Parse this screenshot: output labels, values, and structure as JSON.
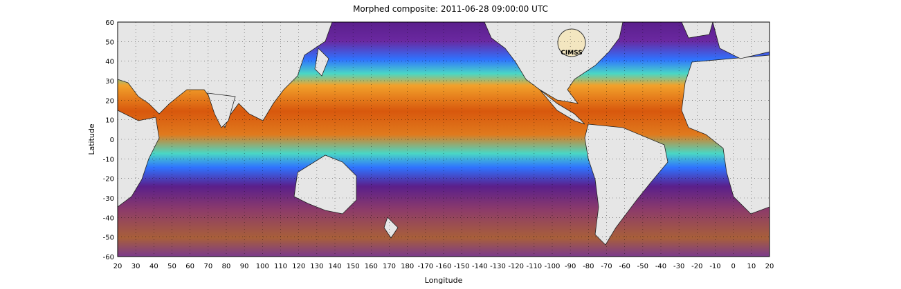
{
  "title": "Morphed composite: 2011-06-28 09:00:00 UTC",
  "xlabel": "Longitude",
  "ylabel": "Latitude",
  "logo_text": "CIMSS",
  "xticks": [
    "20",
    "30",
    "40",
    "50",
    "60",
    "70",
    "80",
    "90",
    "100",
    "110",
    "120",
    "130",
    "140",
    "150",
    "160",
    "170",
    "180",
    "-170",
    "-160",
    "-150",
    "-140",
    "-130",
    "-120",
    "-110",
    "-100",
    "-90",
    "-80",
    "-70",
    "-60",
    "-50",
    "-40",
    "-30",
    "-20",
    "-10",
    "0",
    "10",
    "20"
  ],
  "yticks": [
    "60",
    "50",
    "40",
    "30",
    "20",
    "10",
    "0",
    "-10",
    "-20",
    "-30",
    "-40",
    "-50",
    "-60"
  ],
  "colors": {
    "land": "#e6e6e6",
    "dry": "#5a1f8c",
    "low": "#2f73ff",
    "mid": "#4ad7c4",
    "high": "#f2a12b",
    "very_high": "#d8580d",
    "southern_brown": "#a85f3a"
  }
}
